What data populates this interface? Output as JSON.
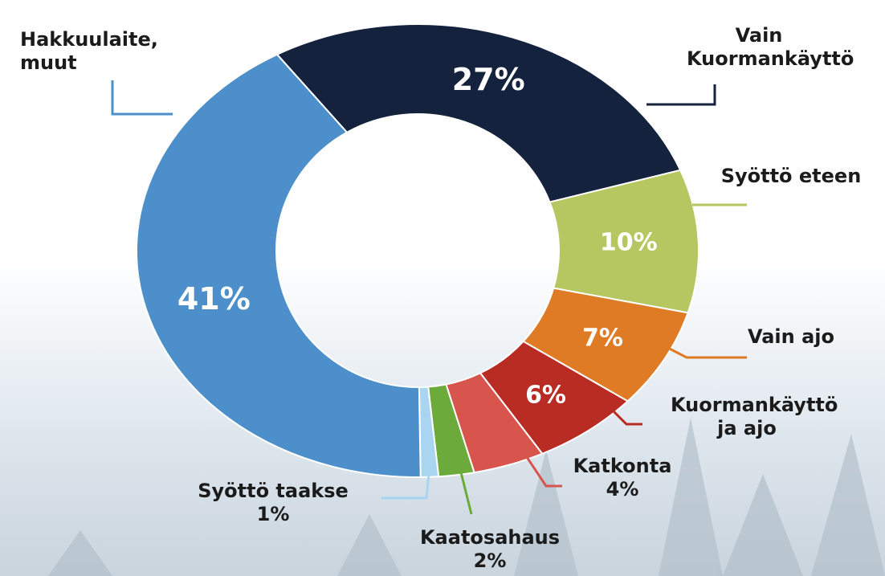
{
  "chart_data": {
    "type": "donut",
    "categories": [
      "Vain Kuormankäyttö",
      "Syöttö eteen",
      "Vain ajo",
      "Kuormankäyttö ja ajo",
      "Katkonta",
      "Kaatosahaus",
      "Syöttö taakse",
      "Hakkuulaite, muut"
    ],
    "values": [
      27,
      10,
      7,
      6,
      4,
      2,
      1,
      41
    ],
    "value_labels": [
      "27%",
      "10%",
      "7%",
      "6%",
      "4%",
      "2%",
      "1%",
      "41%"
    ],
    "colors": [
      "#15223d",
      "#b6c660",
      "#de7b24",
      "#b82c24",
      "#d8554e",
      "#6caa3b",
      "#a9d5f1",
      "#4c8fca"
    ]
  }
}
